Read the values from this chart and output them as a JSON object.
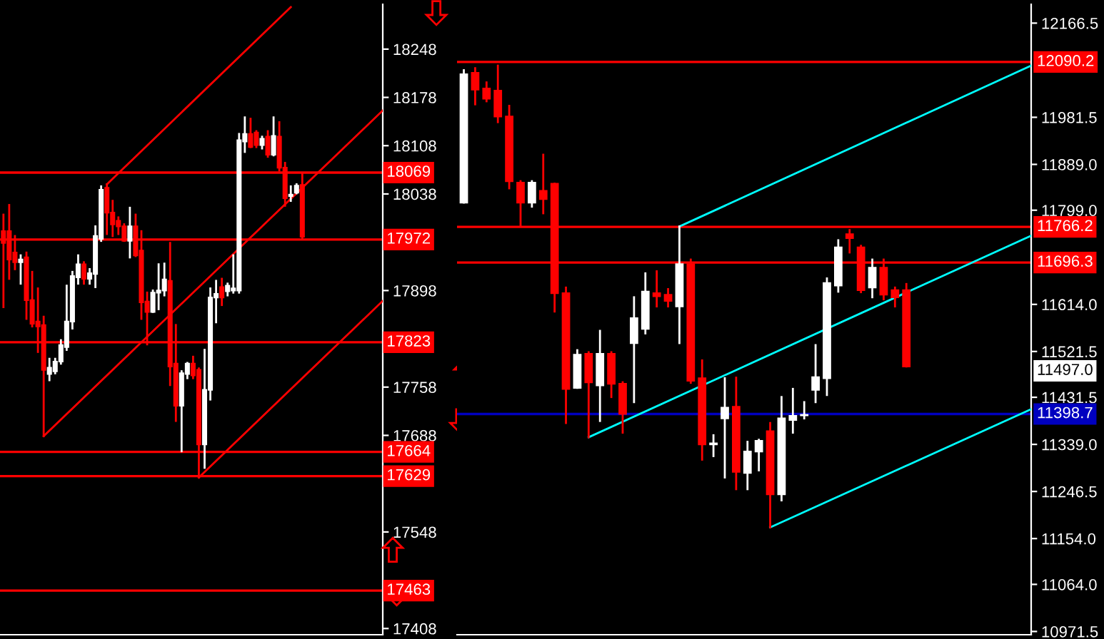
{
  "chart_data": [
    {
      "type": "candlestick",
      "categories": [
        null,
        null,
        null,
        null,
        null,
        null,
        null,
        null,
        null,
        null,
        null,
        null,
        null,
        null,
        null,
        null,
        null,
        null,
        null,
        null,
        null,
        null,
        null,
        null,
        null,
        null,
        null,
        null,
        null,
        null,
        null,
        null,
        null,
        null,
        null,
        null,
        null,
        null,
        null,
        null,
        null,
        null,
        null,
        null,
        null,
        null,
        null,
        null,
        null,
        null,
        null,
        null,
        null,
        null,
        null,
        null,
        null,
        null,
        null,
        null,
        null,
        null,
        null,
        null,
        null,
        null,
        null
      ],
      "ohlc": [
        [
          17984,
          18008,
          17874,
          17967
        ],
        [
          17984,
          18022,
          17915,
          17943
        ],
        [
          17953,
          17977,
          17929,
          17939
        ],
        [
          17939,
          17949,
          17908,
          17943
        ],
        [
          17946,
          17953,
          17857,
          17884
        ],
        [
          17884,
          17925,
          17846,
          17850
        ],
        [
          17853,
          17901,
          17809,
          17846
        ],
        [
          17848,
          17860,
          17687,
          17783
        ],
        [
          17777,
          17799,
          17768,
          17786
        ],
        [
          17781,
          17799,
          17778,
          17795
        ],
        [
          17795,
          17826,
          17792,
          17819
        ],
        [
          17816,
          17905,
          17812,
          17853
        ],
        [
          17853,
          17925,
          17843,
          17919
        ],
        [
          17917,
          17949,
          17908,
          17936
        ],
        [
          17936,
          17939,
          17908,
          17915
        ],
        [
          17915,
          17929,
          17908,
          17923
        ],
        [
          17922,
          17991,
          17903,
          17977
        ],
        [
          17973,
          18049,
          17970,
          18044
        ],
        [
          18047,
          18052,
          17980,
          18011
        ],
        [
          18011,
          18028,
          17977,
          17994
        ],
        [
          17999,
          18004,
          17980,
          17991
        ],
        [
          17991,
          17994,
          17970,
          17970
        ],
        [
          17970,
          18018,
          17946,
          17991
        ],
        [
          17991,
          18008,
          17948,
          17949
        ],
        [
          17956,
          17984,
          17857,
          17881
        ],
        [
          17882,
          17895,
          17820,
          17867
        ],
        [
          17867,
          17898,
          17867,
          17895
        ],
        [
          17895,
          17936,
          17871,
          17898
        ],
        [
          17898,
          17937,
          17891,
          17914
        ],
        [
          17912,
          17967,
          17761,
          17788
        ],
        [
          17792,
          17848,
          17709,
          17731
        ],
        [
          17731,
          17781,
          17665,
          17778
        ],
        [
          17777,
          17793,
          17771,
          17792
        ],
        [
          17792,
          17802,
          17771,
          17775
        ],
        [
          17783,
          17785,
          17627,
          17675
        ],
        [
          17675,
          17812,
          17641,
          17754
        ],
        [
          17754,
          17901,
          17740,
          17888
        ],
        [
          17888,
          17912,
          17852,
          17893
        ],
        [
          17903,
          17915,
          17877,
          17888
        ],
        [
          17897,
          17908,
          17891,
          17905
        ],
        [
          17898,
          17949,
          17895,
          17901
        ],
        [
          17898,
          18125,
          17895,
          18116
        ],
        [
          18114,
          18149,
          18099,
          18125
        ],
        [
          18125,
          18147,
          18106,
          18106
        ],
        [
          18127,
          18129,
          18106,
          18109
        ],
        [
          18109,
          18121,
          18104,
          18118
        ],
        [
          18121,
          18129,
          18092,
          18095
        ],
        [
          18095,
          18149,
          18094,
          18122
        ],
        [
          18121,
          18142,
          18072,
          18076
        ],
        [
          18076,
          18083,
          18021,
          18032
        ],
        [
          18035,
          18049,
          18028,
          18037
        ],
        [
          18040,
          18052,
          18039,
          18050
        ],
        [
          18051,
          18068,
          17973,
          17976
        ],
        null,
        null,
        null,
        null,
        null,
        null,
        null,
        null,
        null,
        null,
        null,
        null,
        null,
        null
      ],
      "colors": [
        "#ff0000",
        "#ff0000",
        "#ff0000",
        "#ffffff",
        "#ff0000",
        "#ff0000",
        "#ff0000",
        "#ff0000",
        "#ffffff",
        "#ffffff",
        "#ffffff",
        "#ffffff",
        "#ffffff",
        "#ffffff",
        "#ff0000",
        "#ffffff",
        "#ffffff",
        "#ffffff",
        "#ff0000",
        "#ff0000",
        "#ff0000",
        "#ff0000",
        "#ffffff",
        "#ff0000",
        "#ff0000",
        "#ff0000",
        "#ffffff",
        "#ffffff",
        "#ffffff",
        "#ff0000",
        "#ff0000",
        "#ffffff",
        "#ffffff",
        "#ff0000",
        "#ff0000",
        "#ffffff",
        "#ffffff",
        "#ffffff",
        "#ff0000",
        "#ffffff",
        "#ffffff",
        "#ffffff",
        "#ffffff",
        "#ff0000",
        "#ff0000",
        "#ffffff",
        "#ff0000",
        "#ffffff",
        "#ff0000",
        "#ff0000",
        "#ffffff",
        "#ffffff",
        "#ff0000",
        null,
        null,
        null,
        null,
        null,
        null,
        null,
        null,
        null,
        null,
        null,
        null,
        null,
        null
      ],
      "series": [
        {
          "type": "line",
          "color": "#ff0000",
          "values": [
            null,
            null,
            null,
            null,
            null,
            null,
            null,
            17687,
            null,
            null,
            null,
            null,
            null,
            null,
            null,
            null,
            null,
            null,
            null,
            null,
            null,
            null,
            null,
            null,
            null,
            null,
            null,
            null,
            null,
            null,
            null,
            null,
            null,
            null,
            null,
            null,
            null,
            null,
            null,
            null,
            null,
            null,
            null,
            null,
            null,
            null,
            null,
            null,
            null,
            null,
            null,
            null,
            null,
            null,
            null,
            null,
            null,
            null,
            null,
            null,
            null,
            null,
            null,
            null,
            null,
            null,
            18159
          ]
        },
        {
          "type": "line",
          "color": "#ff0000",
          "values": [
            null,
            null,
            null,
            null,
            null,
            null,
            null,
            null,
            null,
            null,
            null,
            null,
            null,
            null,
            null,
            null,
            null,
            null,
            18052,
            null,
            null,
            null,
            null,
            null,
            null,
            null,
            null,
            null,
            null,
            null,
            null,
            null,
            null,
            null,
            null,
            null,
            null,
            null,
            null,
            null,
            null,
            null,
            null,
            null,
            null,
            null,
            null,
            null,
            null,
            null,
            18309,
            null,
            null,
            null,
            null,
            null,
            null,
            null,
            null,
            null,
            null,
            null,
            null,
            null,
            null,
            null,
            null
          ]
        },
        {
          "type": "line",
          "color": "#ff0000",
          "values": [
            null,
            null,
            null,
            null,
            null,
            null,
            null,
            null,
            null,
            null,
            null,
            null,
            null,
            null,
            null,
            null,
            null,
            null,
            null,
            null,
            null,
            null,
            null,
            null,
            null,
            null,
            null,
            null,
            null,
            null,
            null,
            null,
            null,
            null,
            17627,
            null,
            null,
            null,
            null,
            null,
            null,
            null,
            null,
            null,
            null,
            null,
            null,
            null,
            null,
            null,
            null,
            null,
            null,
            null,
            null,
            null,
            null,
            null,
            null,
            null,
            null,
            null,
            null,
            null,
            null,
            null,
            17883
          ]
        }
      ],
      "ylim": [
        17399,
        18313
      ],
      "yticks": [
        18248,
        18178,
        18108,
        18038,
        17898,
        17758,
        17688,
        17548,
        17408
      ],
      "ref_lines": [
        {
          "axis": "y",
          "value": 18069,
          "label": "18069",
          "color": "#ff0000"
        },
        {
          "axis": "y",
          "value": 17972,
          "label": "17972",
          "color": "#ff0000"
        },
        {
          "axis": "y",
          "value": 17823,
          "label": "17823",
          "color": "#ff0000"
        },
        {
          "axis": "y",
          "value": 17664,
          "label": "17664",
          "color": "#ff0000"
        },
        {
          "axis": "y",
          "value": 17629,
          "label": "17629",
          "color": "#ff0000"
        },
        {
          "axis": "y",
          "value": 17463,
          "label": "17463",
          "color": "#ff0000"
        }
      ],
      "tick_labels": "y"
    },
    {
      "type": "candlestick",
      "categories": [
        null,
        null,
        null,
        null,
        null,
        null,
        null,
        null,
        null,
        null,
        null,
        null,
        null,
        null,
        null,
        null,
        null,
        null,
        null,
        null,
        null,
        null,
        null,
        null,
        null,
        null,
        null,
        null,
        null,
        null,
        null,
        null,
        null,
        null,
        null,
        null,
        null,
        null,
        null,
        null,
        null,
        null,
        null,
        null,
        null,
        null,
        null,
        null,
        null,
        null,
        null
      ],
      "ohlc": [
        [
          11814,
          12074,
          11814,
          12066
        ],
        [
          12069,
          12078,
          12007,
          12036
        ],
        [
          12038,
          12050,
          12013,
          12018
        ],
        [
          12034,
          12083,
          11972,
          11983
        ],
        [
          11983,
          12004,
          11842,
          11856
        ],
        [
          11853,
          11856,
          11767,
          11814
        ],
        [
          11814,
          11856,
          11806,
          11853
        ],
        [
          11837,
          11908,
          11793,
          11821
        ],
        [
          11851,
          11851,
          11600,
          11636
        ],
        [
          11636,
          11647,
          11381,
          11448
        ],
        [
          11450,
          11524,
          11450,
          11515
        ],
        [
          11517,
          11520,
          11353,
          11461
        ],
        [
          11455,
          11562,
          11385,
          11517
        ],
        [
          11517,
          11520,
          11432,
          11458
        ],
        [
          11458,
          11461,
          11362,
          11399
        ],
        [
          11538,
          11628,
          11422,
          11587
        ],
        [
          11566,
          11675,
          11557,
          11639
        ],
        [
          11636,
          11679,
          11610,
          11630
        ],
        [
          11633,
          11644,
          11610,
          11621
        ],
        [
          11610,
          11767,
          11538,
          11693
        ],
        [
          11693,
          11702,
          11460,
          11464
        ],
        [
          11469,
          11504,
          11309,
          11339
        ],
        [
          11339,
          11357,
          11316,
          11341
        ],
        [
          11390,
          11469,
          11274,
          11411
        ],
        [
          11413,
          11470,
          11251,
          11285
        ],
        [
          11283,
          11344,
          11251,
          11325
        ],
        [
          11325,
          11348,
          11288,
          11346
        ],
        [
          11365,
          11381,
          11176,
          11241
        ],
        [
          11241,
          11432,
          11229,
          11390
        ],
        [
          11387,
          11448,
          11362,
          11395
        ],
        [
          11396,
          11422,
          11390,
          11397
        ],
        [
          11446,
          11534,
          11422,
          11471
        ],
        [
          11469,
          11665,
          11436,
          11656
        ],
        [
          11651,
          11740,
          11639,
          11726
        ],
        [
          11752,
          11760,
          11716,
          11744
        ],
        [
          11726,
          11729,
          11638,
          11642
        ],
        [
          11647,
          11702,
          11628,
          11686
        ],
        [
          11686,
          11702,
          11624,
          11633
        ],
        [
          11642,
          11647,
          11610,
          11628
        ],
        [
          11642,
          11654,
          11492,
          11492
        ],
        null,
        null,
        null,
        null,
        null,
        null,
        null,
        null,
        null,
        null,
        null
      ],
      "colors": [
        "#ffffff",
        "#ff0000",
        "#ff0000",
        "#ff0000",
        "#ff0000",
        "#ff0000",
        "#ffffff",
        "#ff0000",
        "#ff0000",
        "#ff0000",
        "#ffffff",
        "#ff0000",
        "#ffffff",
        "#ff0000",
        "#ff0000",
        "#ffffff",
        "#ffffff",
        "#ff0000",
        "#ff0000",
        "#ffffff",
        "#ff0000",
        "#ff0000",
        "#ffffff",
        "#ffffff",
        "#ff0000",
        "#ffffff",
        "#ffffff",
        "#ff0000",
        "#ffffff",
        "#ffffff",
        "#ffffff",
        "#ffffff",
        "#ffffff",
        "#ffffff",
        "#ff0000",
        "#ff0000",
        "#ffffff",
        "#ff0000",
        "#ff0000",
        "#ff0000",
        null,
        null,
        null,
        null,
        null,
        null,
        null,
        null,
        null,
        null,
        null
      ],
      "series": [
        {
          "type": "line",
          "color": "#00ffff",
          "values": [
            null,
            null,
            null,
            null,
            null,
            null,
            null,
            null,
            null,
            null,
            null,
            null,
            null,
            null,
            null,
            null,
            null,
            null,
            null,
            11767,
            null,
            null,
            null,
            null,
            null,
            null,
            null,
            null,
            null,
            null,
            null,
            null,
            null,
            null,
            null,
            null,
            null,
            null,
            null,
            null,
            null,
            null,
            null,
            null,
            null,
            null,
            null,
            null,
            null,
            null,
            12083
          ]
        },
        {
          "type": "line",
          "color": "#00ffff",
          "values": [
            null,
            null,
            null,
            null,
            null,
            null,
            null,
            null,
            null,
            null,
            null,
            null,
            null,
            null,
            null,
            null,
            null,
            null,
            null,
            null,
            null,
            null,
            null,
            null,
            null,
            null,
            null,
            11176,
            null,
            null,
            null,
            null,
            null,
            null,
            null,
            null,
            null,
            null,
            null,
            null,
            null,
            null,
            null,
            null,
            null,
            null,
            null,
            null,
            null,
            null,
            11408
          ]
        },
        {
          "type": "line",
          "color": "#00ffff",
          "values": [
            null,
            null,
            null,
            null,
            null,
            null,
            null,
            null,
            null,
            null,
            null,
            11353,
            null,
            null,
            null,
            null,
            null,
            null,
            null,
            null,
            null,
            null,
            null,
            null,
            null,
            null,
            null,
            null,
            null,
            null,
            null,
            null,
            null,
            null,
            null,
            null,
            null,
            null,
            null,
            null,
            null,
            null,
            null,
            null,
            null,
            null,
            null,
            null,
            null,
            null,
            11749
          ]
        }
      ],
      "ylim": [
        10965.1,
        12203.5
      ],
      "yticks": [
        {
          "value": 12166.5,
          "label": "12166.5"
        },
        {
          "value": 11981.5,
          "label": "11981.5"
        },
        {
          "value": 11889.0,
          "label": "11889.0"
        },
        {
          "value": 11799.0,
          "label": "11799.0"
        },
        {
          "value": 11614.0,
          "label": "11614.0"
        },
        {
          "value": 11521.5,
          "label": "11521.5"
        },
        {
          "value": 11431.5,
          "label": "11431.5"
        },
        {
          "value": 11339.0,
          "label": "11339.0"
        },
        {
          "value": 11246.5,
          "label": "11246.5"
        },
        {
          "value": 11154.0,
          "label": "11154.0"
        },
        {
          "value": 11064.0,
          "label": "11064.0"
        },
        {
          "value": 10971.5,
          "label": "10971.5"
        }
      ],
      "ref_lines": [
        {
          "axis": "y",
          "value": 12090.2,
          "label": "12090.2",
          "color": "#ff0000"
        },
        {
          "axis": "y",
          "value": 11766.2,
          "label": "11766.2",
          "color": "#ff0000"
        },
        {
          "axis": "y",
          "value": 11696.3,
          "label": "11696.3",
          "color": "#ff0000"
        },
        {
          "axis": "y",
          "value": 11398.7,
          "label": "11398.7",
          "color": "#0000c0"
        }
      ],
      "annotations": [
        "11497.0"
      ],
      "tick_labels": "y"
    }
  ]
}
